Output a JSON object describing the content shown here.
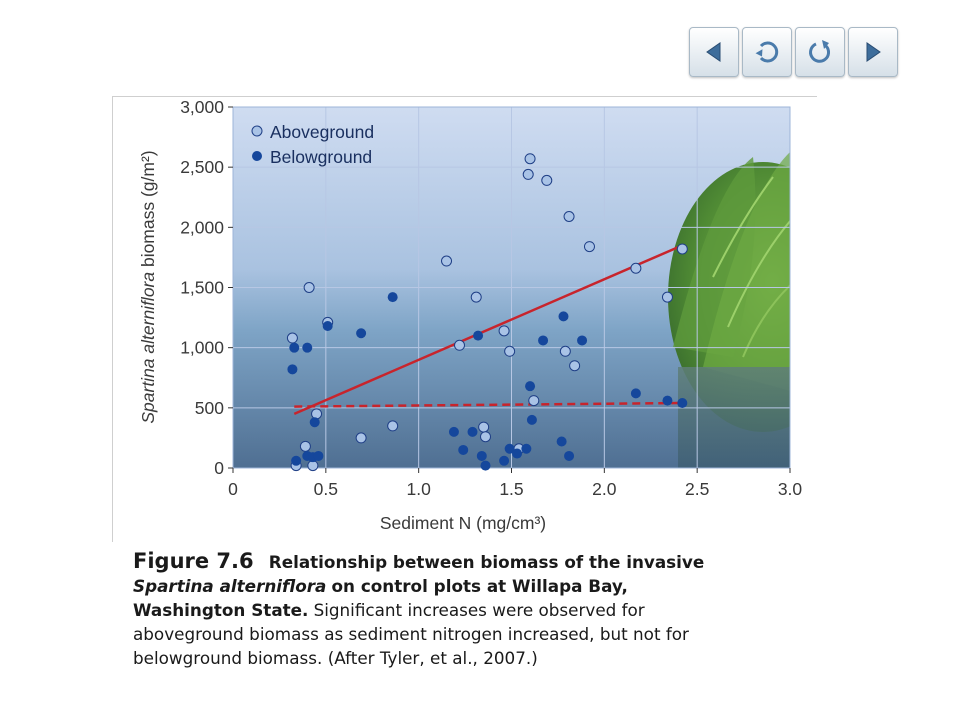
{
  "navigation": {
    "buttons": [
      {
        "name": "back-button",
        "icon": "left-triangle-icon"
      },
      {
        "name": "return-button",
        "icon": "circular-return-arrow-icon"
      },
      {
        "name": "replay-button",
        "icon": "circular-refresh-arrow-icon"
      },
      {
        "name": "forward-button",
        "icon": "right-triangle-icon"
      }
    ]
  },
  "chart_data": {
    "type": "scatter",
    "title": "",
    "xlabel": "Sediment N (mg/cm³)",
    "ylabel": "Spartina alterniflora biomass (g/m²)",
    "xlim": [
      0,
      3.0
    ],
    "ylim": [
      0,
      3000
    ],
    "x_ticks": [
      "0",
      "0.5",
      "1.0",
      "1.5",
      "2.0",
      "2.5",
      "3.0"
    ],
    "y_ticks": [
      "0",
      "500",
      "1,000",
      "1,500",
      "2,000",
      "2,500",
      "3,000"
    ],
    "grid": true,
    "legend_position": "top-left",
    "colors": {
      "aboveground_fill": "#a9c3e6",
      "aboveground_edge": "#1f3f86",
      "belowground_fill": "#15479c",
      "regression_line": "#c8242c",
      "grid": "#b7c7e4",
      "plot_top": "#cad8ef",
      "plot_bottom": "#57779a",
      "grass": "#6aa240"
    },
    "series": [
      {
        "name": "Aboveground",
        "marker": "light-filled-circle",
        "points": [
          [
            0.32,
            1080
          ],
          [
            0.41,
            1500
          ],
          [
            0.51,
            1210
          ],
          [
            0.69,
            250
          ],
          [
            0.86,
            350
          ],
          [
            1.15,
            1720
          ],
          [
            1.22,
            1020
          ],
          [
            1.31,
            1420
          ],
          [
            1.35,
            340
          ],
          [
            1.36,
            260
          ],
          [
            1.46,
            1140
          ],
          [
            1.49,
            970
          ],
          [
            1.54,
            160
          ],
          [
            1.59,
            2440
          ],
          [
            1.6,
            2570
          ],
          [
            1.62,
            560
          ],
          [
            1.69,
            2390
          ],
          [
            1.79,
            970
          ],
          [
            1.81,
            2090
          ],
          [
            1.84,
            850
          ],
          [
            1.92,
            1840
          ],
          [
            2.17,
            1660
          ],
          [
            2.34,
            1420
          ],
          [
            2.42,
            1820
          ],
          [
            0.34,
            20
          ],
          [
            0.39,
            180
          ],
          [
            0.43,
            20
          ],
          [
            0.45,
            450
          ]
        ]
      },
      {
        "name": "Belowground",
        "marker": "dark-filled-circle",
        "points": [
          [
            0.32,
            820
          ],
          [
            0.33,
            1000
          ],
          [
            0.34,
            60
          ],
          [
            0.4,
            1000
          ],
          [
            0.4,
            100
          ],
          [
            0.43,
            90
          ],
          [
            0.44,
            380
          ],
          [
            0.46,
            100
          ],
          [
            0.51,
            1180
          ],
          [
            0.69,
            1120
          ],
          [
            0.86,
            1420
          ],
          [
            1.19,
            300
          ],
          [
            1.24,
            150
          ],
          [
            1.29,
            300
          ],
          [
            1.32,
            1100
          ],
          [
            1.34,
            100
          ],
          [
            1.36,
            20
          ],
          [
            1.46,
            60
          ],
          [
            1.49,
            160
          ],
          [
            1.53,
            120
          ],
          [
            1.58,
            160
          ],
          [
            1.6,
            680
          ],
          [
            1.61,
            400
          ],
          [
            1.67,
            1060
          ],
          [
            1.77,
            220
          ],
          [
            1.78,
            1260
          ],
          [
            1.81,
            100
          ],
          [
            1.88,
            1060
          ],
          [
            2.17,
            620
          ],
          [
            2.34,
            560
          ],
          [
            2.42,
            540
          ]
        ]
      }
    ],
    "trend_lines": [
      {
        "series": "Aboveground",
        "style": "solid",
        "from": [
          0.33,
          450
        ],
        "to": [
          2.42,
          1850
        ]
      },
      {
        "series": "Belowground",
        "style": "dashed",
        "from": [
          0.33,
          510
        ],
        "to": [
          2.42,
          540
        ]
      }
    ]
  },
  "caption": {
    "figure_label": "Figure 7.6",
    "title_bold_1": "Relationship between biomass of the invasive",
    "title_species": "Spartina alterniflora",
    "title_bold_2": "on control plots at Willapa Bay, Washington State.",
    "description": "Significant increases were observed for aboveground biomass as sediment nitrogen increased, but not for belowground biomass. (After Tyler, et al., 2007.)"
  }
}
